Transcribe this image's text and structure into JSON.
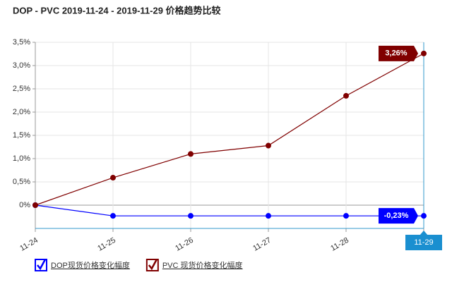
{
  "chart_data": {
    "type": "line",
    "title": "DOP - PVC 2019-11-24 - 2019-11-29 价格趋势比较",
    "categories": [
      "11-24",
      "11-25",
      "11-26",
      "11-27",
      "11-28",
      "11-29"
    ],
    "series": [
      {
        "name": "DOP现货价格变化幅度",
        "color": "#0000ff",
        "values": [
          0,
          -0.23,
          -0.23,
          -0.23,
          -0.23,
          -0.23
        ],
        "value_labels": [
          null,
          null,
          null,
          null,
          null,
          "-0,23%"
        ]
      },
      {
        "name": "PVC 现货价格变化幅度",
        "color": "#800000",
        "values": [
          0,
          0.59,
          1.1,
          1.28,
          2.35,
          3.26
        ],
        "value_labels": [
          null,
          null,
          null,
          null,
          null,
          "3,26%"
        ]
      }
    ],
    "ylim": [
      -0.5,
      3.5
    ],
    "yticks": [
      {
        "value": 0,
        "label": "0%"
      },
      {
        "value": 0.5,
        "label": "0,5%"
      },
      {
        "value": 1,
        "label": "1,0%"
      },
      {
        "value": 1.5,
        "label": "1,5%"
      },
      {
        "value": 2,
        "label": "2,0%"
      },
      {
        "value": 2.5,
        "label": "2,5%"
      },
      {
        "value": 3,
        "label": "3,0%"
      },
      {
        "value": 3.5,
        "label": "3,5%"
      }
    ],
    "grid": true,
    "legend": "bottom-left"
  }
}
